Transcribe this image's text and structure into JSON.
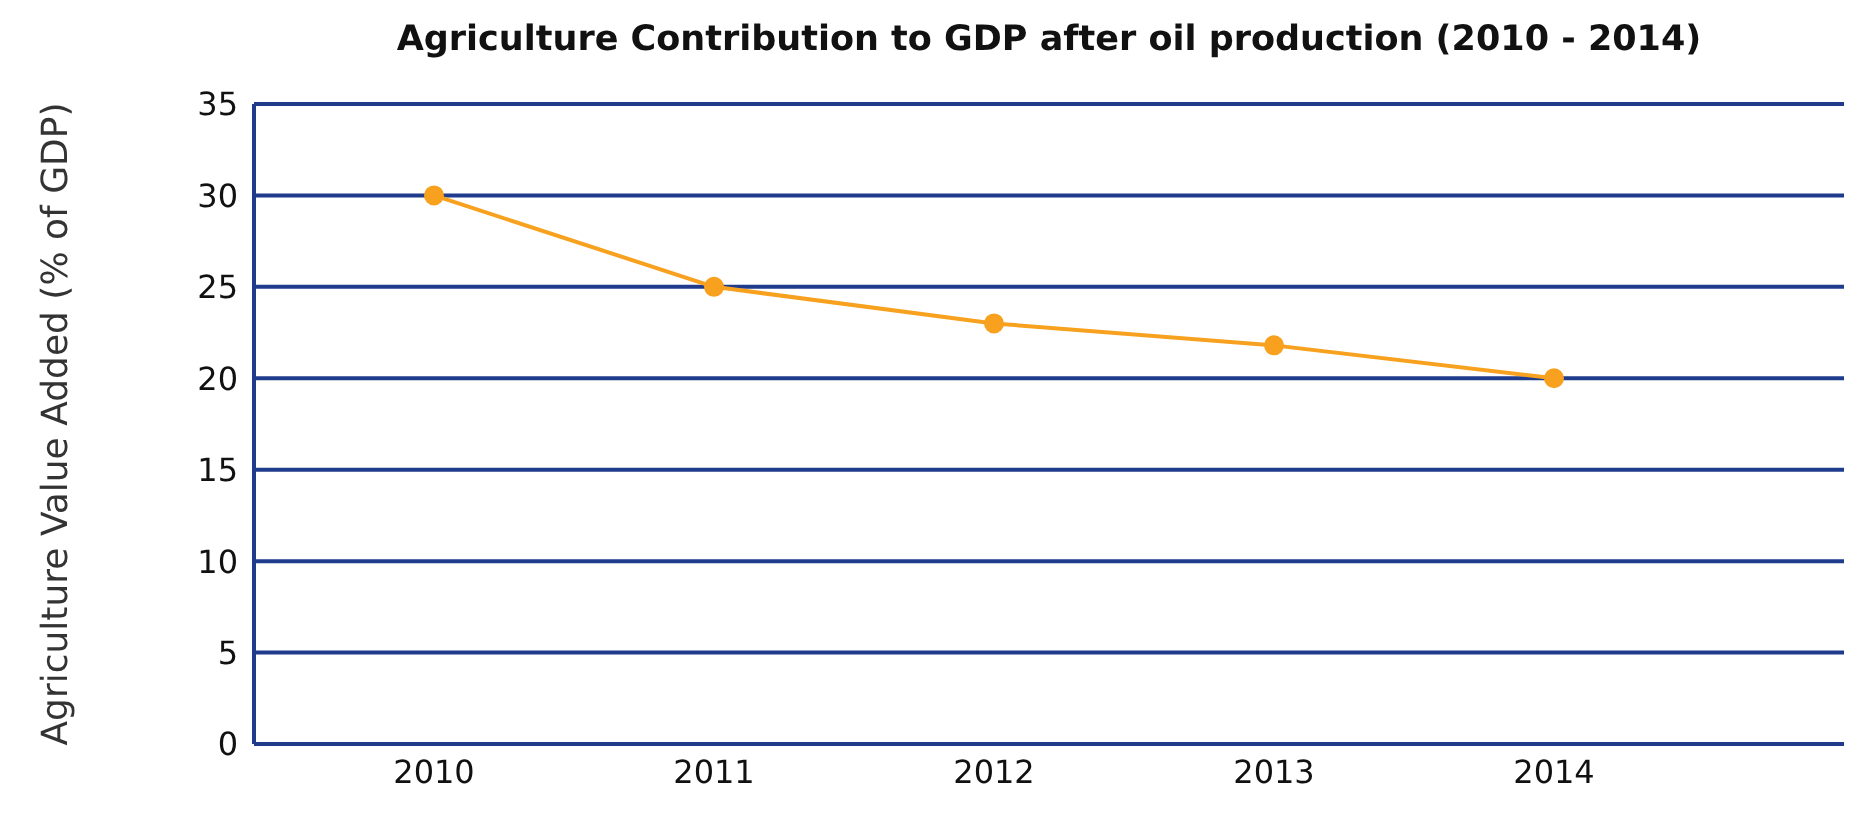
{
  "chart_data": {
    "type": "line",
    "title": "Agriculture Contribution to GDP after oil production (2010 - 2014)",
    "ylabel": "Agriculture Value Added (% of GDP)",
    "categories": [
      "2010",
      "2011",
      "2012",
      "2013",
      "2014"
    ],
    "series": [
      {
        "color": "#f7a11f",
        "values": [
          30,
          25,
          23,
          21.8,
          20
        ]
      }
    ],
    "ylim": [
      0,
      35
    ],
    "yticks": [
      0,
      5,
      10,
      15,
      20,
      25,
      30,
      35
    ],
    "grid": "y",
    "legend": false,
    "marker": "circle",
    "line_style": "solid"
  }
}
